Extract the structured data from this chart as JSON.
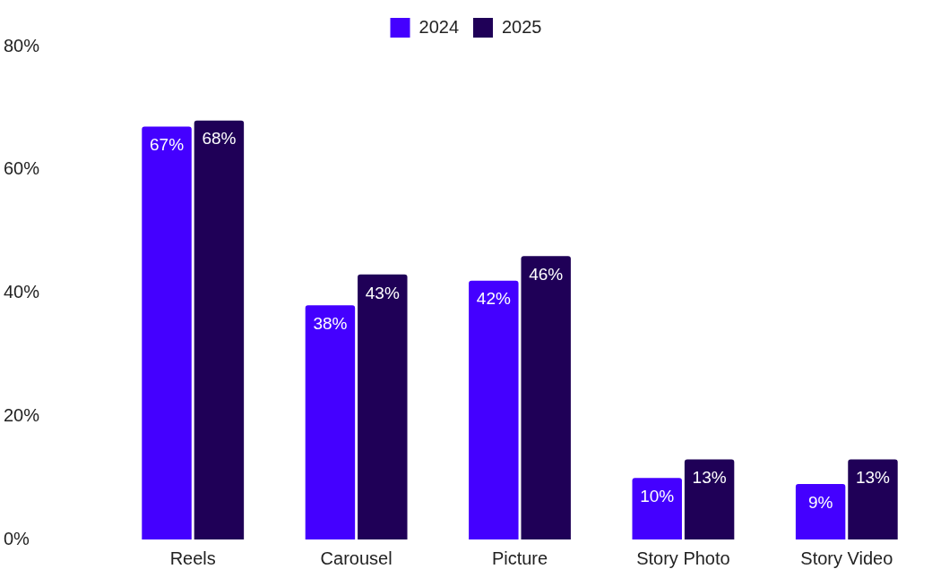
{
  "chart_data": {
    "type": "bar",
    "categories": [
      "Reels",
      "Carousel",
      "Picture",
      "Story Photo",
      "Story Video"
    ],
    "series": [
      {
        "name": "2024",
        "color": "#4400ff",
        "values": [
          67,
          38,
          42,
          10,
          9
        ],
        "value_labels": [
          "67%",
          "38%",
          "42%",
          "10%",
          "9%"
        ]
      },
      {
        "name": "2025",
        "color": "#1f0057",
        "values": [
          68,
          43,
          46,
          13,
          13
        ],
        "value_labels": [
          "68%",
          "43%",
          "46%",
          "13%",
          "13%"
        ]
      }
    ],
    "ylim": [
      0,
      80
    ],
    "yticks": [
      {
        "value": 0,
        "label": "0%"
      },
      {
        "value": 20,
        "label": "20%"
      },
      {
        "value": 40,
        "label": "40%"
      },
      {
        "value": 60,
        "label": "60%"
      },
      {
        "value": 80,
        "label": "80%"
      }
    ],
    "grid": false,
    "legend": "top"
  }
}
